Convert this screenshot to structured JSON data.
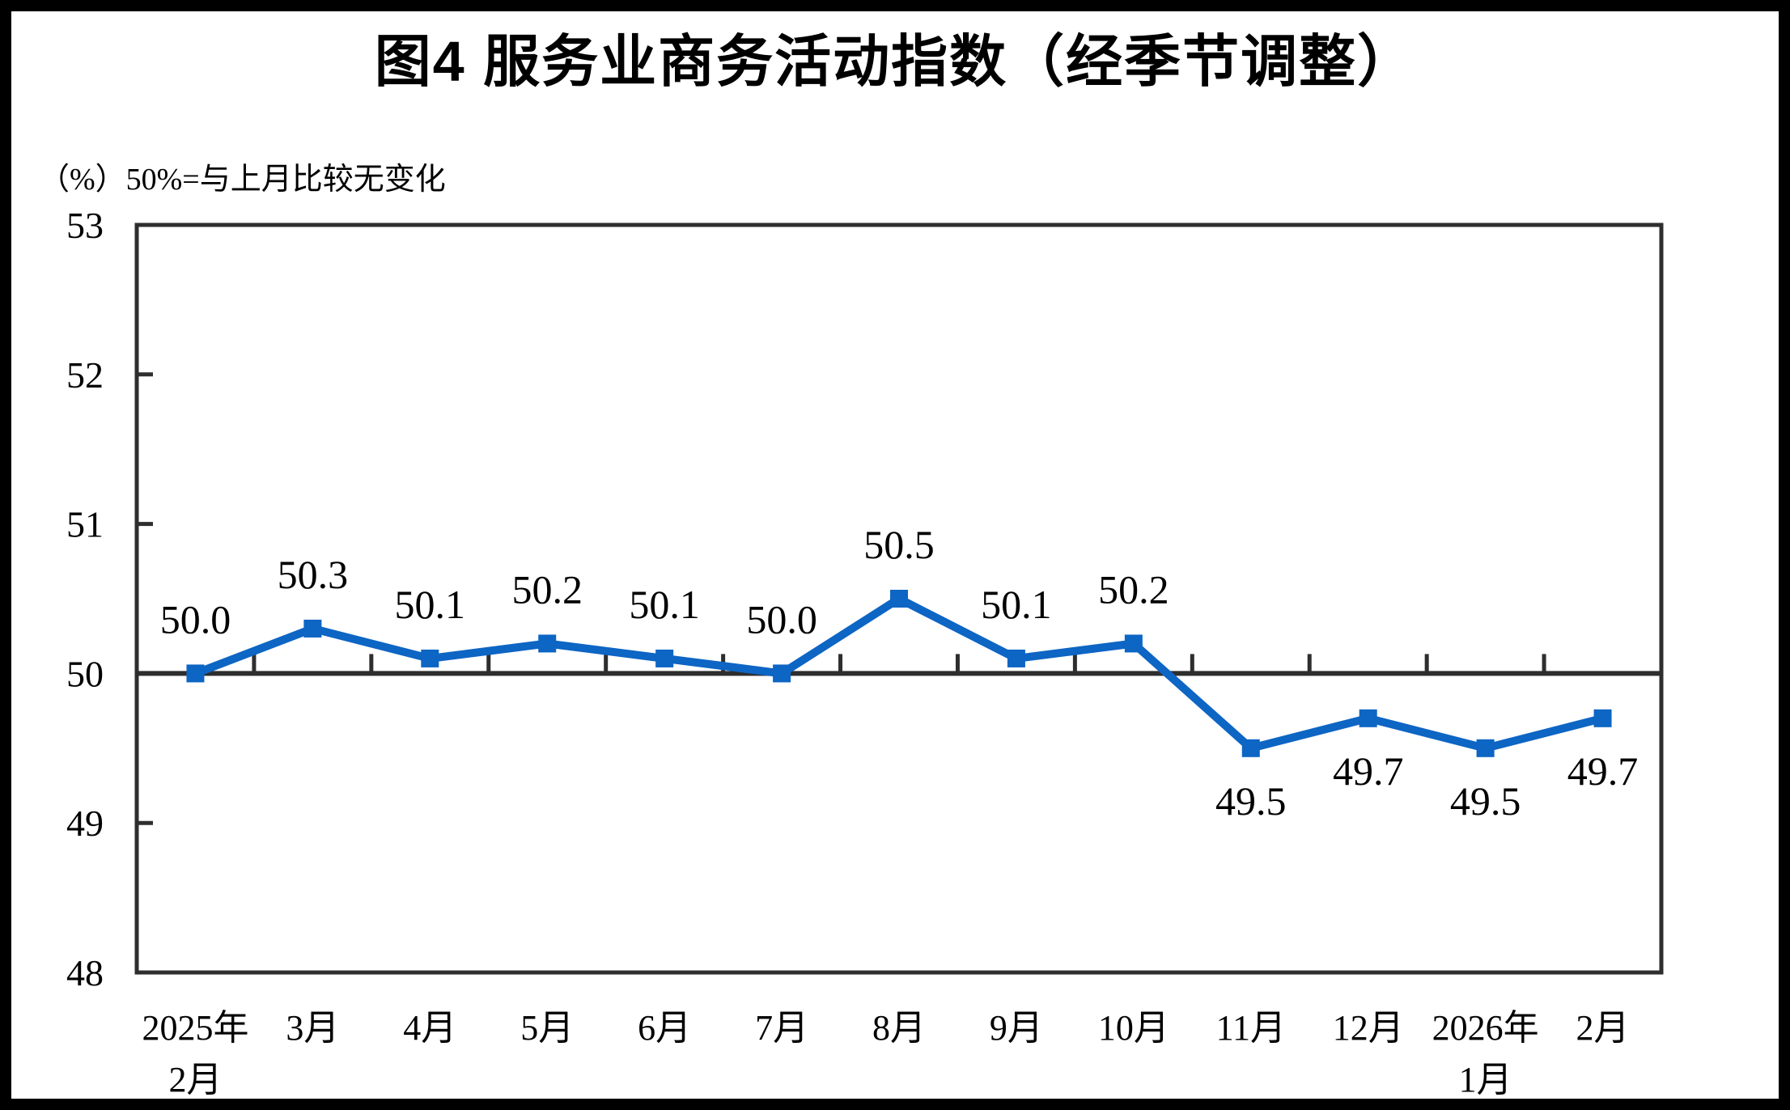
{
  "page": {
    "title": "图4 服务业商务活动指数（经季节调整）",
    "unit_note": "（%）50%=与上月比较无变化"
  },
  "colors": {
    "line": "#0D65C4",
    "axis": "#2E2E2E",
    "text": "#000000",
    "background": "#FFFFFF",
    "frame": "#000000"
  },
  "chart_data": {
    "type": "line",
    "title": "图4 服务业商务活动指数（经季节调整）",
    "axis_note": "（%）50%=与上月比较无变化",
    "xlabel": "",
    "ylabel": "%",
    "categories": [
      [
        "2025年",
        "2月"
      ],
      [
        "3月"
      ],
      [
        "4月"
      ],
      [
        "5月"
      ],
      [
        "6月"
      ],
      [
        "7月"
      ],
      [
        "8月"
      ],
      [
        "9月"
      ],
      [
        "10月"
      ],
      [
        "11月"
      ],
      [
        "12月"
      ],
      [
        "2026年",
        "1月"
      ],
      [
        "2月"
      ]
    ],
    "values": [
      50.0,
      50.3,
      50.1,
      50.2,
      50.1,
      50.0,
      50.5,
      50.1,
      50.2,
      49.5,
      49.7,
      49.5,
      49.7
    ],
    "data_labels": [
      "50.0",
      "50.3",
      "50.1",
      "50.2",
      "50.1",
      "50.0",
      "50.5",
      "50.1",
      "50.2",
      "49.5",
      "49.7",
      "49.5",
      "49.7"
    ],
    "ylim": [
      48,
      53
    ],
    "yticks": [
      53,
      52,
      51,
      50,
      49,
      48
    ],
    "reference_line": 50,
    "grid": false,
    "legend": "none",
    "marker": "square"
  }
}
